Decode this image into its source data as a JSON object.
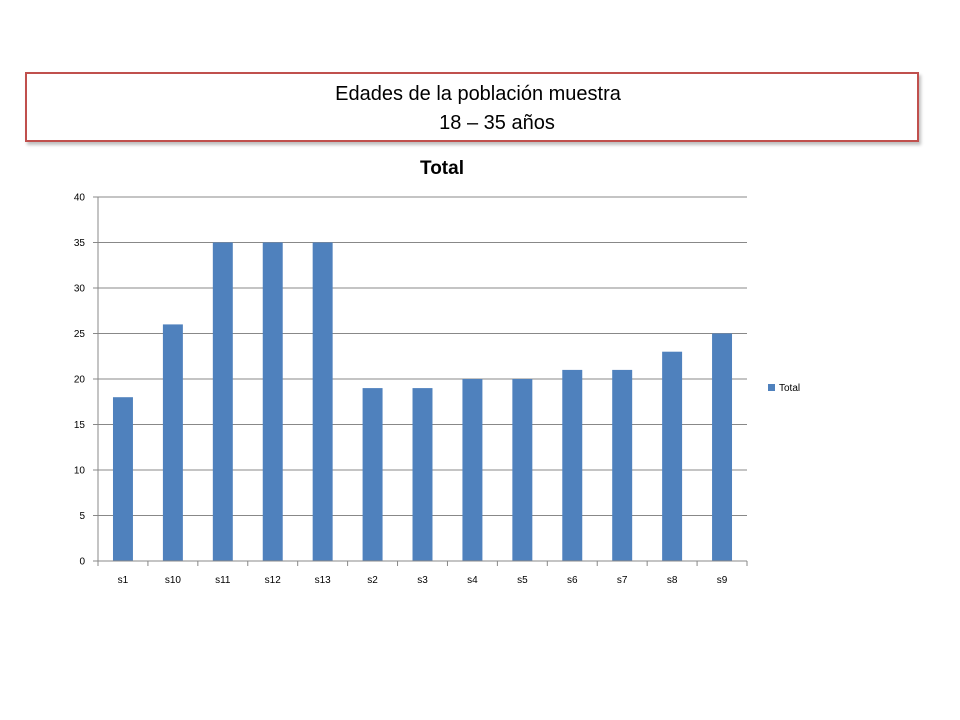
{
  "slide": {
    "title_line1": "Edades de la población muestra",
    "title_line2": "18 – 35 años"
  },
  "colors": {
    "bar": "#4f81bd",
    "grid": "#888888",
    "frame_border": "#c0504d"
  },
  "chart_data": {
    "type": "bar",
    "title": "Total",
    "xlabel": "",
    "ylabel": "",
    "categories": [
      "s1",
      "s10",
      "s11",
      "s12",
      "s13",
      "s2",
      "s3",
      "s4",
      "s5",
      "s6",
      "s7",
      "s8",
      "s9"
    ],
    "series": [
      {
        "name": "Total",
        "values": [
          18,
          26,
          35,
          35,
          35,
          19,
          19,
          20,
          20,
          21,
          21,
          23,
          25
        ]
      }
    ],
    "ylim": [
      0,
      40
    ],
    "yticks": [
      0,
      5,
      10,
      15,
      20,
      25,
      30,
      35,
      40
    ],
    "grid": true,
    "legend_position": "right"
  }
}
